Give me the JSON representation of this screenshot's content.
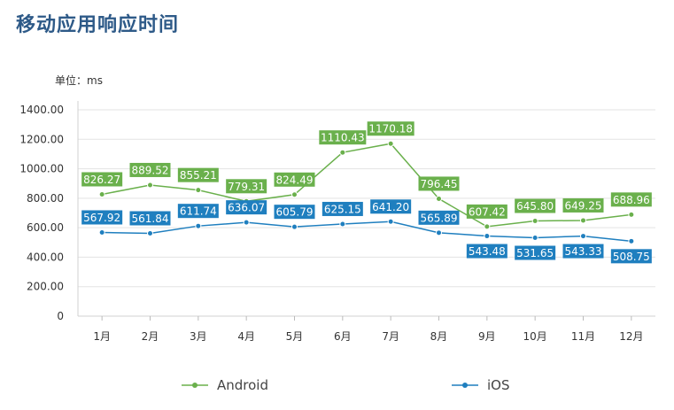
{
  "chart_data": {
    "type": "line",
    "title": "移动应用响应时间",
    "unit_label": "单位：ms",
    "categories": [
      "1月",
      "2月",
      "3月",
      "4月",
      "5月",
      "6月",
      "7月",
      "8月",
      "9月",
      "10月",
      "11月",
      "12月"
    ],
    "ylim": [
      0,
      1400
    ],
    "yticks": [
      0,
      200,
      400,
      600,
      800,
      1000,
      1200,
      1400
    ],
    "ytick_labels": [
      "0",
      "200.00",
      "400.00",
      "600.00",
      "800.00",
      "1000.00",
      "1200.00",
      "1400.00"
    ],
    "series": [
      {
        "name": "Android",
        "color": "#6ab04c",
        "values": [
          826.27,
          889.52,
          855.21,
          779.31,
          824.49,
          1110.43,
          1170.18,
          796.45,
          607.42,
          645.8,
          649.25,
          688.96
        ],
        "labels": [
          "826.27",
          "889.52",
          "855.21",
          "779.31",
          "824.49",
          "1110.43",
          "1170.18",
          "796.45",
          "607.42",
          "645.80",
          "649.25",
          "688.96"
        ]
      },
      {
        "name": "iOS",
        "color": "#1f7fbf",
        "values": [
          567.92,
          561.84,
          611.74,
          636.07,
          605.79,
          625.15,
          641.2,
          565.89,
          543.48,
          531.65,
          543.33,
          508.75
        ],
        "labels": [
          "567.92",
          "561.84",
          "611.74",
          "636.07",
          "605.79",
          "625.15",
          "641.20",
          "565.89",
          "543.48",
          "531.65",
          "543.33",
          "508.75"
        ]
      }
    ]
  }
}
